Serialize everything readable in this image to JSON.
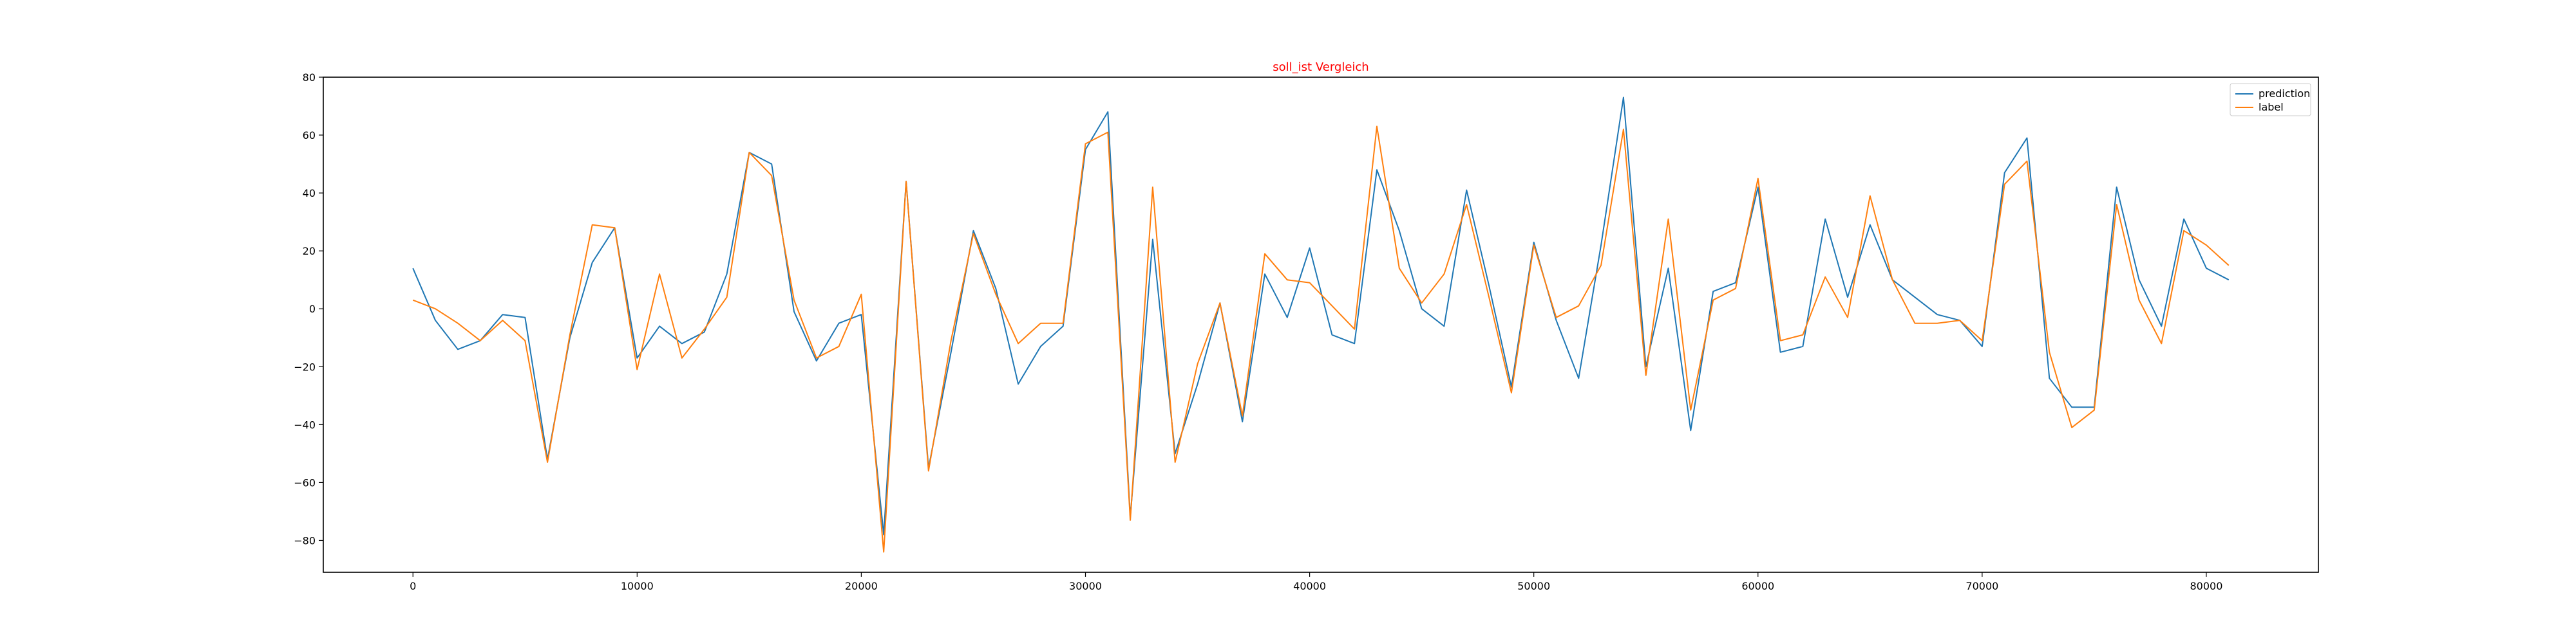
{
  "chart_data": {
    "type": "line",
    "title": "soll_ist Vergleich",
    "title_color": "#ff0000",
    "xlabel": "",
    "ylabel": "",
    "xlim": [
      -4000,
      85000
    ],
    "ylim": [
      -91,
      80
    ],
    "x_ticks": [
      0,
      10000,
      20000,
      30000,
      40000,
      50000,
      60000,
      70000,
      80000
    ],
    "y_ticks": [
      -80,
      -60,
      -40,
      -20,
      0,
      20,
      40,
      60,
      80
    ],
    "grid": false,
    "legend_position": "top-right",
    "x_start": 0,
    "x_step": 1000,
    "series": [
      {
        "name": "prediction",
        "color": "#1f77b4",
        "values": [
          14,
          -4,
          -14,
          -11,
          -2,
          -3,
          -52,
          -10,
          16,
          28,
          -17,
          -6,
          -12,
          -8,
          12,
          54,
          50,
          -1,
          -18,
          -5,
          -2,
          -78,
          44,
          -55,
          -15,
          27,
          7,
          -26,
          -13,
          -6,
          55,
          68,
          -72,
          24,
          -50,
          -26,
          2,
          -39,
          12,
          -3,
          21,
          -9,
          -12,
          48,
          27,
          0,
          -6,
          41,
          8,
          -27,
          23,
          -4,
          -24,
          22,
          73,
          -20,
          14,
          -42,
          6,
          9,
          42,
          -15,
          -13,
          31,
          4,
          29,
          10,
          4,
          -2,
          -4,
          -13,
          47,
          59,
          -24,
          -34,
          -34,
          42,
          10,
          -6,
          31,
          14,
          10
        ]
      },
      {
        "name": "label",
        "color": "#ff7f0e",
        "values": [
          3,
          0,
          -5,
          -11,
          -4,
          -11,
          -53,
          -9,
          29,
          28,
          -21,
          12,
          -17,
          -7,
          4,
          54,
          46,
          3,
          -17,
          -13,
          5,
          -84,
          44,
          -56,
          -11,
          26,
          5,
          -12,
          -5,
          -5,
          57,
          61,
          -73,
          42,
          -53,
          -19,
          2,
          -37,
          19,
          10,
          9,
          1,
          -7,
          63,
          14,
          2,
          12,
          36,
          4,
          -29,
          22,
          -3,
          1,
          15,
          62,
          -23,
          31,
          -35,
          3,
          7,
          45,
          -11,
          -9,
          11,
          -3,
          39,
          10,
          -5,
          -5,
          -4,
          -11,
          43,
          51,
          -15,
          -41,
          -35,
          36,
          3,
          -12,
          27,
          22,
          15
        ]
      }
    ]
  }
}
